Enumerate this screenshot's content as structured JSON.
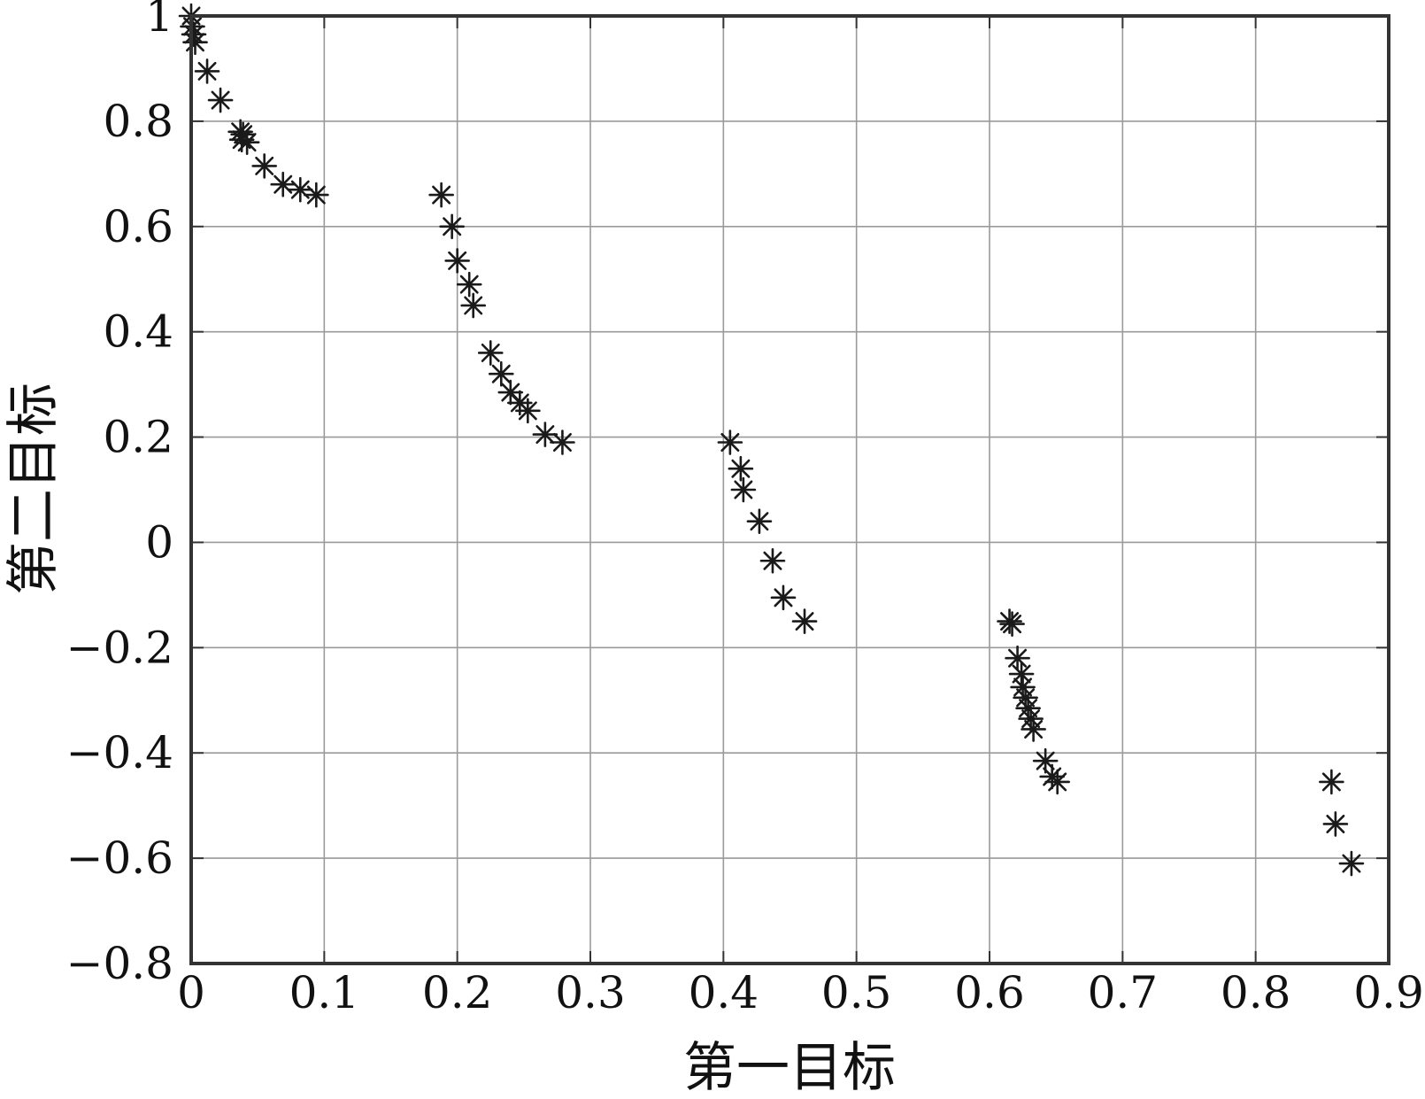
{
  "chart_data": {
    "type": "scatter",
    "xlabel": "第一目标",
    "ylabel": "第二目标",
    "xlim": [
      0,
      0.9
    ],
    "ylim": [
      -0.8,
      1
    ],
    "xticks": [
      0,
      0.1,
      0.2,
      0.3,
      0.4,
      0.5,
      0.6,
      0.7,
      0.8,
      0.9
    ],
    "xtick_labels": [
      "0",
      "0.1",
      "0.2",
      "0.3",
      "0.4",
      "0.5",
      "0.6",
      "0.7",
      "0.8",
      "0.9"
    ],
    "yticks": [
      -0.8,
      -0.6,
      -0.4,
      -0.2,
      0,
      0.2,
      0.4,
      0.6,
      0.8,
      1
    ],
    "ytick_labels": [
      "−0.8",
      "−0.6",
      "−0.4",
      "−0.2",
      "0",
      "0.2",
      "0.4",
      "0.6",
      "0.8",
      "1"
    ],
    "grid": true,
    "marker": "asterisk",
    "marker_color": "#1a1a1a",
    "series": [
      {
        "points": [
          [
            0.0,
            1.0
          ],
          [
            0.001,
            0.98
          ],
          [
            0.002,
            0.965
          ],
          [
            0.003,
            0.95
          ],
          [
            0.012,
            0.895
          ],
          [
            0.022,
            0.84
          ],
          [
            0.037,
            0.78
          ],
          [
            0.039,
            0.775
          ],
          [
            0.038,
            0.765
          ],
          [
            0.042,
            0.76
          ],
          [
            0.055,
            0.715
          ],
          [
            0.069,
            0.68
          ],
          [
            0.082,
            0.67
          ],
          [
            0.094,
            0.66
          ],
          [
            0.188,
            0.66
          ],
          [
            0.196,
            0.6
          ],
          [
            0.2,
            0.535
          ],
          [
            0.209,
            0.49
          ],
          [
            0.212,
            0.45
          ],
          [
            0.225,
            0.36
          ],
          [
            0.233,
            0.32
          ],
          [
            0.24,
            0.285
          ],
          [
            0.247,
            0.265
          ],
          [
            0.253,
            0.25
          ],
          [
            0.266,
            0.205
          ],
          [
            0.279,
            0.19
          ],
          [
            0.405,
            0.19
          ],
          [
            0.413,
            0.14
          ],
          [
            0.415,
            0.1
          ],
          [
            0.427,
            0.04
          ],
          [
            0.437,
            -0.035
          ],
          [
            0.445,
            -0.105
          ],
          [
            0.461,
            -0.15
          ],
          [
            0.615,
            -0.15
          ],
          [
            0.617,
            -0.155
          ],
          [
            0.621,
            -0.22
          ],
          [
            0.624,
            -0.25
          ],
          [
            0.625,
            -0.275
          ],
          [
            0.627,
            -0.295
          ],
          [
            0.629,
            -0.315
          ],
          [
            0.631,
            -0.335
          ],
          [
            0.633,
            -0.355
          ],
          [
            0.642,
            -0.415
          ],
          [
            0.647,
            -0.445
          ],
          [
            0.651,
            -0.455
          ],
          [
            0.857,
            -0.455
          ],
          [
            0.86,
            -0.535
          ],
          [
            0.872,
            -0.61
          ]
        ]
      }
    ]
  }
}
